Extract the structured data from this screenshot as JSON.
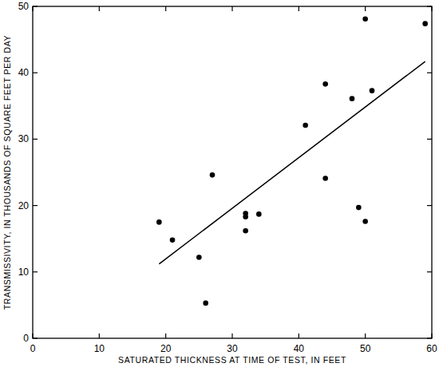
{
  "chart_data": {
    "type": "scatter",
    "xlabel": "SATURATED THICKNESS AT TIME OF TEST, IN FEET",
    "ylabel": "TRANSMISSIVITY, IN THOUSANDS OF SQUARE FEET PER DAY",
    "xlim": [
      0,
      60
    ],
    "ylim": [
      0,
      50
    ],
    "xticks": [
      0,
      10,
      20,
      30,
      40,
      50,
      60
    ],
    "yticks": [
      0,
      10,
      20,
      30,
      40,
      50
    ],
    "grid": false,
    "series": [
      {
        "type": "scatter",
        "color": "#000000",
        "marker": "circle",
        "x": [
          19,
          21,
          25,
          26,
          27,
          32,
          32,
          32,
          34,
          41,
          44,
          44,
          48,
          49,
          50,
          50,
          51,
          59
        ],
        "values": [
          17.5,
          14.8,
          12.2,
          5.3,
          24.6,
          18.8,
          18.3,
          16.2,
          18.7,
          32.1,
          38.3,
          24.1,
          36.1,
          19.7,
          48.1,
          17.6,
          37.3,
          47.4
        ]
      },
      {
        "type": "line",
        "color": "#000000",
        "line_style": "solid",
        "x": [
          19,
          59
        ],
        "values": [
          11.2,
          41.7
        ]
      }
    ]
  }
}
